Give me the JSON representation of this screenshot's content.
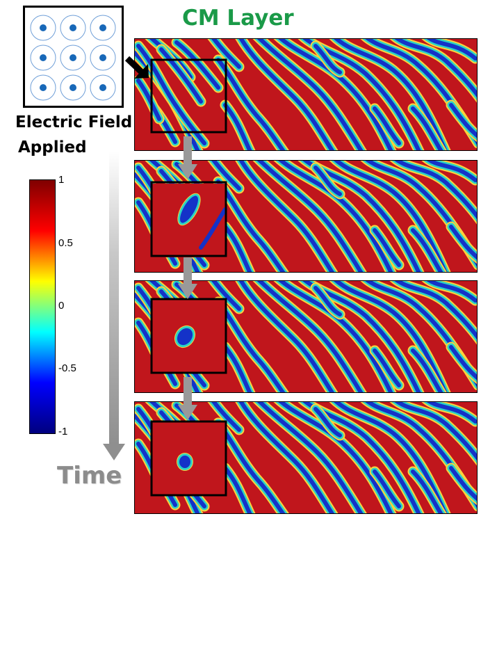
{
  "title": {
    "text": "CM Layer",
    "color": "#1a9a48"
  },
  "field_label": {
    "line1": "Electric Field",
    "line2": "Applied"
  },
  "colorbar": {
    "ticks": [
      "1",
      "0.5",
      "0",
      "-0.5",
      "-1"
    ],
    "colors": [
      "#7f0000",
      "#ff0000",
      "#ffff00",
      "#00ffff",
      "#0000ff",
      "#00007f"
    ]
  },
  "time_label": "Time",
  "panels": [
    "panel-1",
    "panel-2",
    "panel-3",
    "panel-4"
  ],
  "colors": {
    "stripe_red": "#c0161c",
    "stripe_blue": "#1432c8",
    "arrow_gray": "#9b9b9b",
    "dot_blue": "#1868b8"
  }
}
